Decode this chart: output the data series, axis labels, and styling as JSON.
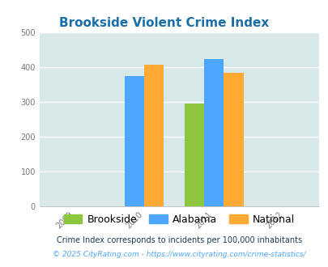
{
  "title": "Brookside Violent Crime Index",
  "title_color": "#1a6fa8",
  "bg_color": "#d6e8e8",
  "fig_bg_color": "#ffffff",
  "years": [
    2009,
    2010,
    2011,
    2012
  ],
  "xlim": [
    2008.5,
    2012.5
  ],
  "ylim": [
    0,
    500
  ],
  "yticks": [
    0,
    100,
    200,
    300,
    400,
    500
  ],
  "series": {
    "Brookside": {
      "color": "#8dc63f",
      "data": {
        "2011": 295
      }
    },
    "Alabama": {
      "color": "#4da6ff",
      "data": {
        "2010": 375,
        "2011": 422
      }
    },
    "National": {
      "color": "#ffaa33",
      "data": {
        "2010": 406,
        "2011": 384
      }
    }
  },
  "bar_width": 0.28,
  "legend_labels": [
    "Brookside",
    "Alabama",
    "National"
  ],
  "legend_colors": [
    "#8dc63f",
    "#4da6ff",
    "#ffaa33"
  ],
  "footnote1": "Crime Index corresponds to incidents per 100,000 inhabitants",
  "footnote2": "© 2025 CityRating.com - https://www.cityrating.com/crime-statistics/",
  "footnote1_color": "#1a3a5c",
  "footnote2_color": "#4da6ff",
  "grid_color": "#ffffff",
  "tick_label_color": "#777777",
  "spine_color": "#aaaaaa"
}
